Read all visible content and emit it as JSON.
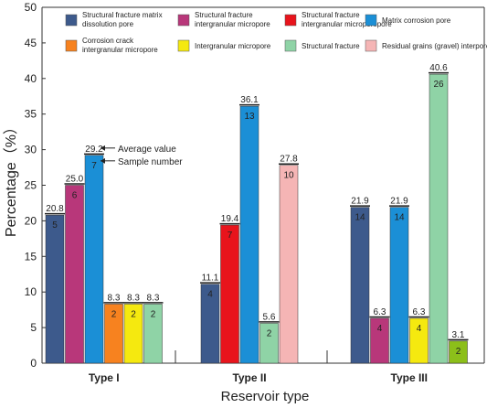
{
  "chart_data": {
    "type": "bar",
    "ylabel": "Percentage（%）",
    "xlabel": "Reservoir type",
    "ylim": [
      0,
      50
    ],
    "yticks": [
      0,
      5,
      10,
      15,
      20,
      25,
      30,
      35,
      40,
      45,
      50
    ],
    "categories": [
      "Type I",
      "Type II",
      "Type III"
    ],
    "legend_position": "top",
    "series": [
      {
        "name": "Structural fracture matrix dissolution pore",
        "color": "#3d5a8c",
        "values": [
          20.8,
          11.1,
          21.9
        ],
        "counts": [
          5,
          4,
          14
        ]
      },
      {
        "name": "Structural fracture intergranular micropore",
        "color": "#b8377a",
        "values": [
          25.0,
          null,
          6.3
        ],
        "counts": [
          6,
          null,
          4
        ]
      },
      {
        "name": "Structural fracture intergranular microporepore",
        "color": "#e8141c",
        "values": [
          null,
          19.4,
          null
        ],
        "counts": [
          null,
          7,
          null
        ]
      },
      {
        "name": "Matrix corrosion pore",
        "color": "#1b8fd6",
        "values": [
          29.2,
          36.1,
          21.9
        ],
        "counts": [
          7,
          13,
          14
        ]
      },
      {
        "name": "Corrosion crack intergranular micropore",
        "color": "#f7821f",
        "values": [
          8.3,
          null,
          null
        ],
        "counts": [
          2,
          null,
          null
        ]
      },
      {
        "name": "Intergranular micropore",
        "color": "#f5e90f",
        "values": [
          8.3,
          null,
          6.3
        ],
        "counts": [
          2,
          null,
          4
        ]
      },
      {
        "name": "Structural fracture",
        "color": "#8fd3a6",
        "values": [
          8.3,
          5.6,
          40.6
        ],
        "counts": [
          2,
          2,
          26
        ]
      },
      {
        "name": "Residual grains (gravel) interpores",
        "color": "#f5b5b5",
        "values": [
          null,
          27.8,
          null
        ],
        "counts": [
          null,
          10,
          null
        ]
      },
      {
        "name": "",
        "color": "#8cbf1a",
        "values": [
          null,
          null,
          3.1
        ],
        "counts": [
          null,
          null,
          2
        ]
      }
    ],
    "annotations": [
      {
        "text": "Average value"
      },
      {
        "text": "Sample number"
      }
    ]
  }
}
